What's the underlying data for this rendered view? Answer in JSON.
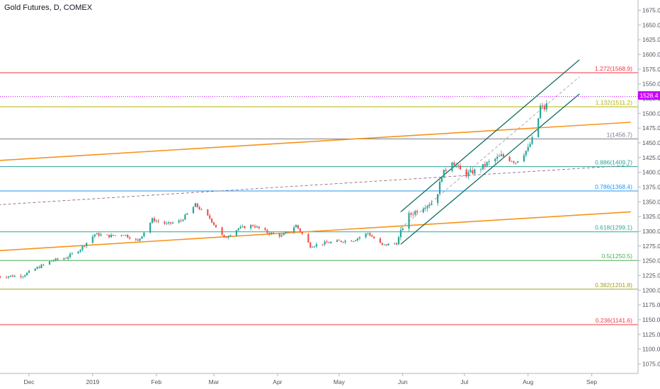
{
  "chart": {
    "title": "Gold Futures, D, COMEX",
    "last_price": "1528.4",
    "colors": {
      "up": "#26a69a",
      "down": "#ef5350",
      "channel": "#136f63",
      "trend": "#f7931a",
      "price_line": "#cc00ff"
    }
  },
  "chart_data": {
    "type": "candlestick",
    "title": "Gold Futures, D, COMEX",
    "yaxis": {
      "side": "right",
      "ylim": [
        1050,
        1690
      ],
      "ticks": [
        1075,
        1100,
        1125,
        1150,
        1175,
        1200,
        1225,
        1250,
        1275,
        1300,
        1325,
        1350,
        1375,
        1400,
        1425,
        1450,
        1475,
        1500,
        1525,
        1550,
        1575,
        1600,
        1625,
        1650,
        1675
      ]
    },
    "xaxis": {
      "labels": [
        {
          "label": "Dec",
          "date": "2018-12-01"
        },
        {
          "label": "2019",
          "date": "2019-01-01"
        },
        {
          "label": "Feb",
          "date": "2019-02-01"
        },
        {
          "label": "Mar",
          "date": "2019-03-01"
        },
        {
          "label": "Apr",
          "date": "2019-04-01"
        },
        {
          "label": "May",
          "date": "2019-05-01"
        },
        {
          "label": "Jun",
          "date": "2019-06-01"
        },
        {
          "label": "Jul",
          "date": "2019-07-01"
        },
        {
          "label": "Aug",
          "date": "2019-08-01"
        },
        {
          "label": "Sep",
          "date": "2019-09-01"
        }
      ]
    },
    "close_path": [
      {
        "date": "2018-11-16",
        "close": 1223
      },
      {
        "date": "2018-11-28",
        "close": 1225
      },
      {
        "date": "2018-12-05",
        "close": 1238
      },
      {
        "date": "2018-12-12",
        "close": 1250
      },
      {
        "date": "2018-12-19",
        "close": 1255
      },
      {
        "date": "2018-12-26",
        "close": 1270
      },
      {
        "date": "2019-01-02",
        "close": 1295
      },
      {
        "date": "2019-01-09",
        "close": 1292
      },
      {
        "date": "2019-01-16",
        "close": 1295
      },
      {
        "date": "2019-01-23",
        "close": 1283
      },
      {
        "date": "2019-01-30",
        "close": 1320
      },
      {
        "date": "2019-02-06",
        "close": 1312
      },
      {
        "date": "2019-02-13",
        "close": 1318
      },
      {
        "date": "2019-02-20",
        "close": 1345
      },
      {
        "date": "2019-02-27",
        "close": 1322
      },
      {
        "date": "2019-03-06",
        "close": 1288
      },
      {
        "date": "2019-03-13",
        "close": 1305
      },
      {
        "date": "2019-03-20",
        "close": 1310
      },
      {
        "date": "2019-03-27",
        "close": 1298
      },
      {
        "date": "2019-04-03",
        "close": 1292
      },
      {
        "date": "2019-04-10",
        "close": 1310
      },
      {
        "date": "2019-04-17",
        "close": 1275
      },
      {
        "date": "2019-04-24",
        "close": 1280
      },
      {
        "date": "2019-05-01",
        "close": 1283
      },
      {
        "date": "2019-05-08",
        "close": 1285
      },
      {
        "date": "2019-05-15",
        "close": 1297
      },
      {
        "date": "2019-05-22",
        "close": 1276
      },
      {
        "date": "2019-05-29",
        "close": 1280
      },
      {
        "date": "2019-06-03",
        "close": 1325
      },
      {
        "date": "2019-06-10",
        "close": 1340
      },
      {
        "date": "2019-06-17",
        "close": 1352
      },
      {
        "date": "2019-06-20",
        "close": 1395
      },
      {
        "date": "2019-06-25",
        "close": 1420
      },
      {
        "date": "2019-07-01",
        "close": 1395
      },
      {
        "date": "2019-07-08",
        "close": 1405
      },
      {
        "date": "2019-07-12",
        "close": 1415
      },
      {
        "date": "2019-07-19",
        "close": 1428
      },
      {
        "date": "2019-07-26",
        "close": 1418
      },
      {
        "date": "2019-08-01",
        "close": 1440
      },
      {
        "date": "2019-08-05",
        "close": 1472
      },
      {
        "date": "2019-08-07",
        "close": 1512
      },
      {
        "date": "2019-08-09",
        "close": 1508
      },
      {
        "date": "2019-08-12",
        "close": 1528
      }
    ],
    "fibonacci_levels": [
      {
        "label": "1.272(1568.9)",
        "ratio": 1.272,
        "price": 1568.9,
        "color": "#f23645"
      },
      {
        "label": "1.132(1511.2)",
        "ratio": 1.132,
        "price": 1511.2,
        "color": "#b5b500"
      },
      {
        "label": "1(1456.7)",
        "ratio": 1,
        "price": 1456.7,
        "color": "#787b86"
      },
      {
        "label": "0.886(1409.7)",
        "ratio": 0.886,
        "price": 1409.7,
        "color": "#2aa198"
      },
      {
        "label": "0.786(1368.4)",
        "ratio": 0.786,
        "price": 1368.4,
        "color": "#2196f3"
      },
      {
        "label": "0.618(1299.1)",
        "ratio": 0.618,
        "price": 1299.1,
        "color": "#22ab94"
      },
      {
        "label": "0.5(1250.5)",
        "ratio": 0.5,
        "price": 1250.5,
        "color": "#4caf50"
      },
      {
        "label": "0.382(1201.8)",
        "ratio": 0.382,
        "price": 1201.8,
        "color": "#a2a219"
      },
      {
        "label": "0.236(1141.6)",
        "ratio": 0.236,
        "price": 1141.6,
        "color": "#f23645"
      }
    ],
    "last_price": 1528.4,
    "trendlines": [
      {
        "kind": "orange",
        "from": {
          "date": "2018-11-16",
          "price": 1420
        },
        "to": {
          "date": "2019-09-20",
          "price": 1485
        }
      },
      {
        "kind": "orange",
        "from": {
          "date": "2018-11-16",
          "price": 1267
        },
        "to": {
          "date": "2019-09-20",
          "price": 1333
        }
      },
      {
        "kind": "dashed",
        "from": {
          "date": "2018-11-16",
          "price": 1345
        },
        "to": {
          "date": "2019-09-20",
          "price": 1412
        }
      },
      {
        "kind": "channel",
        "from": {
          "date": "2019-05-31",
          "price": 1333
        },
        "to": {
          "date": "2019-08-26",
          "price": 1591
        }
      },
      {
        "kind": "channel",
        "from": {
          "date": "2019-05-31",
          "price": 1278
        },
        "to": {
          "date": "2019-08-26",
          "price": 1533
        }
      },
      {
        "kind": "channel-mid",
        "from": {
          "date": "2019-05-31",
          "price": 1305
        },
        "to": {
          "date": "2019-08-26",
          "price": 1562
        }
      }
    ]
  }
}
